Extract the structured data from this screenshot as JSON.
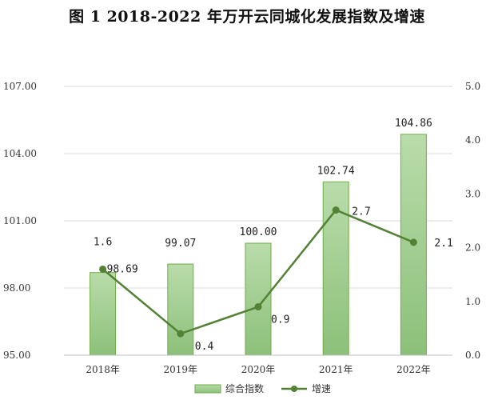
{
  "chart_data": {
    "type": "bar",
    "title": "图 1 2018-2022 年万开云同城化发展指数及增速",
    "categories": [
      "2018年",
      "2019年",
      "2020年",
      "2021年",
      "2022年"
    ],
    "series": [
      {
        "name": "综合指数",
        "type": "bar",
        "axis": "left",
        "values": [
          98.69,
          99.07,
          100.0,
          102.74,
          104.86
        ],
        "labels": [
          "98.69",
          "99.07",
          "100.00",
          "102.74",
          "104.86"
        ],
        "color": "#8cc07a"
      },
      {
        "name": "增速",
        "type": "line",
        "axis": "right",
        "values": [
          1.6,
          0.4,
          0.9,
          2.7,
          2.1
        ],
        "labels": [
          "1.6",
          "0.4",
          "0.9",
          "2.7",
          "2.1"
        ],
        "color": "#538135"
      }
    ],
    "y_left": {
      "ylim": [
        95.0,
        107.0
      ],
      "ticks": [
        95.0,
        98.0,
        101.0,
        104.0,
        107.0
      ],
      "tick_labels": [
        "95.00",
        "98.00",
        "101.00",
        "104.00",
        "107.00"
      ]
    },
    "y_right": {
      "ylim": [
        0.0,
        5.0
      ],
      "ticks": [
        0.0,
        1.0,
        2.0,
        3.0,
        4.0,
        5.0
      ],
      "tick_labels": [
        "0.0",
        "1.0",
        "2.0",
        "3.0",
        "4.0",
        "5.0"
      ]
    },
    "grid": true,
    "legend": "bottom"
  }
}
